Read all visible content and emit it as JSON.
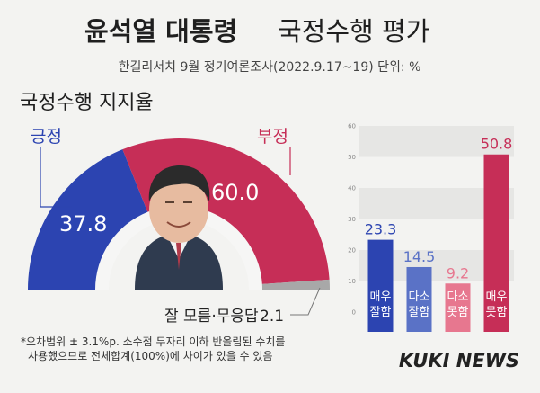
{
  "header": {
    "title_bold": "윤석열 대통령",
    "title_light": "국정수행 평가",
    "subtitle": "한길리서치 9월 정기여론조사(2022.9.17~19) 단위: %"
  },
  "section_title": "국정수행 지지율",
  "colors": {
    "positive": "#2c44b1",
    "negative": "#c62e57",
    "undecided": "#a8a8a8",
    "bar_very_good": "#2c44b1",
    "bar_somewhat_good": "#5a72c6",
    "bar_somewhat_bad": "#e7778f",
    "bar_very_bad": "#c62e57"
  },
  "chart_data": [
    {
      "type": "pie",
      "shape": "semicircle-donut",
      "slices": [
        {
          "label": "긍정",
          "value": 37.8,
          "value_label": "37.8"
        },
        {
          "label": "부정",
          "value": 60.0,
          "value_label": "60.0"
        },
        {
          "label": "잘 모름·무응답",
          "value": 2.1,
          "value_label": "2.1"
        }
      ]
    },
    {
      "type": "bar",
      "categories": [
        "매우\n잘함",
        "다소\n잘함",
        "다소\n못함",
        "매우\n못함"
      ],
      "category_lines": [
        [
          "매우",
          "잘함"
        ],
        [
          "다소",
          "잘함"
        ],
        [
          "다소",
          "못함"
        ],
        [
          "매우",
          "못함"
        ]
      ],
      "values": [
        23.3,
        14.5,
        9.2,
        50.8
      ],
      "value_labels": [
        "23.3",
        "14.5",
        "9.2",
        "50.8"
      ],
      "ylim": [
        0,
        60
      ],
      "yticks": [
        "60",
        "50",
        "40",
        "30",
        "20",
        "10",
        "0"
      ],
      "grid": "alternating bands"
    }
  ],
  "footnote": {
    "line1": "*오차범위 ± 3.1%p. 소수점 두자리 이하 반올림된 수치를",
    "line2": "사용했으므로 전체합계(100%)에 차이가 있을 수 있음"
  },
  "brand": "KUKI NEWS",
  "photo": {
    "icon": "portrait-photo"
  }
}
